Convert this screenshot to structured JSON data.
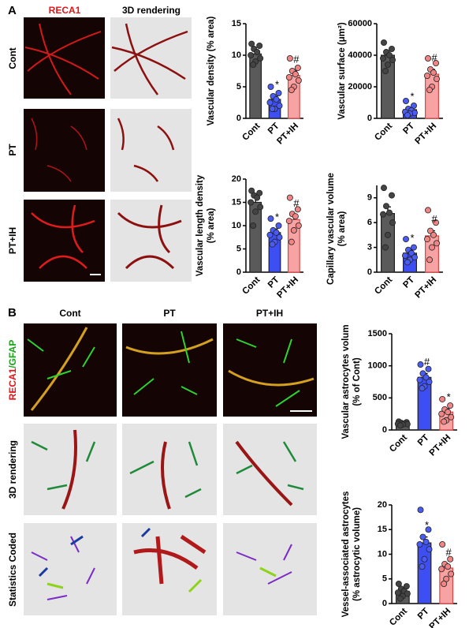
{
  "panel_a": {
    "label": "A",
    "columns": [
      "RECA1",
      "3D rendering"
    ],
    "rows": [
      "Cont",
      "PT",
      "PT+IH"
    ]
  },
  "panel_b": {
    "label": "B",
    "columns": [
      "Cont",
      "PT",
      "PT+IH"
    ],
    "stain": {
      "vessel": "RECA1",
      "glia": "/GFAP"
    },
    "rows": [
      "3D rendering",
      "Statistics Coded"
    ]
  },
  "chart_data": [
    {
      "type": "bar",
      "ylabel": [
        "Vascular density (% area)"
      ],
      "categories": [
        "Cont",
        "PT",
        "PT+IH"
      ],
      "values": [
        10.2,
        3,
        6.8
      ],
      "errors": [
        0.5,
        0.5,
        0.7
      ],
      "annotations": [
        null,
        "*",
        "#"
      ],
      "points": [
        [
          11.8,
          11.5,
          11,
          10.5,
          10,
          9.5,
          9,
          8.5
        ],
        [
          5,
          4,
          3.5,
          3,
          2.5,
          2,
          1.5,
          1.5
        ],
        [
          9.5,
          8,
          7.5,
          7,
          6.5,
          6,
          5,
          4.5
        ]
      ],
      "colors": [
        "#5a5a5a",
        "#3d4ff2",
        "#f7a3a3"
      ],
      "point_colors": [
        "#444444",
        "#4b5cf5",
        "#f08585"
      ],
      "ylim": [
        0,
        15
      ],
      "yticks": [
        0,
        5,
        10,
        15
      ]
    },
    {
      "type": "bar",
      "ylabel": [
        "Vascular surface (μm²)"
      ],
      "categories": [
        "Cont",
        "PT",
        "PT+IH"
      ],
      "values": [
        40000,
        5500,
        28000
      ],
      "errors": [
        2500,
        1000,
        3000
      ],
      "annotations": [
        null,
        "*",
        "#"
      ],
      "points": [
        [
          48000,
          44000,
          42000,
          40000,
          38000,
          37000,
          34000,
          30000
        ],
        [
          11000,
          8000,
          6000,
          5000,
          4000,
          3500,
          3000,
          2000
        ],
        [
          38000,
          35000,
          31000,
          29000,
          27000,
          25000,
          20000,
          18000
        ]
      ],
      "colors": [
        "#5a5a5a",
        "#3d4ff2",
        "#f7a3a3"
      ],
      "point_colors": [
        "#444444",
        "#4b5cf5",
        "#f08585"
      ],
      "ylim": [
        0,
        60000
      ],
      "yticks": [
        0,
        20000,
        40000,
        60000
      ]
    },
    {
      "type": "bar",
      "ylabel": [
        "Vascular length density",
        "(% area)"
      ],
      "categories": [
        "Cont",
        "PT",
        "PT+IH"
      ],
      "values": [
        15,
        8.5,
        11.3
      ],
      "errors": [
        1,
        0.8,
        1
      ],
      "annotations": [
        null,
        "*",
        "#"
      ],
      "points": [
        [
          17.5,
          17,
          16.5,
          16,
          15,
          14,
          13,
          10
        ],
        [
          11.5,
          10,
          9,
          8.5,
          8,
          7.5,
          6.5,
          6
        ],
        [
          16,
          13.5,
          12.5,
          12,
          11,
          10,
          9,
          6.5
        ]
      ],
      "colors": [
        "#5a5a5a",
        "#3d4ff2",
        "#f7a3a3"
      ],
      "point_colors": [
        "#444444",
        "#4b5cf5",
        "#f08585"
      ],
      "ylim": [
        0,
        20
      ],
      "yticks": [
        0,
        5,
        10,
        15,
        20
      ]
    },
    {
      "type": "bar",
      "ylabel": [
        "Capillary vascular volume",
        "(% area)"
      ],
      "categories": [
        "Cont",
        "PT",
        "PT+IH"
      ],
      "values": [
        7.1,
        2.3,
        4.4
      ],
      "errors": [
        0.8,
        0.4,
        0.6
      ],
      "annotations": [
        null,
        "*",
        "#"
      ],
      "points": [
        [
          10.2,
          9.3,
          8,
          7.2,
          7,
          6,
          4.5,
          3
        ],
        [
          4,
          3,
          2.7,
          2.3,
          2,
          1.8,
          1.5,
          1.2
        ],
        [
          7.5,
          6,
          5,
          4.5,
          4,
          3.5,
          3,
          1.5
        ]
      ],
      "colors": [
        "#5a5a5a",
        "#3d4ff2",
        "#f7a3a3"
      ],
      "point_colors": [
        "#444444",
        "#4b5cf5",
        "#f08585"
      ],
      "ylim": [
        0,
        10.5
      ],
      "yticks": [
        0,
        3,
        6,
        9
      ]
    },
    {
      "type": "bar",
      "ylabel": [
        "Vascular astrocytes volum",
        "(% of Cont)"
      ],
      "categories": [
        "Cont",
        "PT",
        "PT+IH"
      ],
      "values": [
        100,
        820,
        280
      ],
      "errors": [
        15,
        60,
        50
      ],
      "annotations": [
        null,
        "#",
        "*"
      ],
      "points": [
        [
          130,
          120,
          110,
          100,
          95,
          90,
          85,
          70
        ],
        [
          1020,
          950,
          880,
          820,
          780,
          750,
          680,
          650
        ],
        [
          480,
          380,
          320,
          280,
          250,
          200,
          150,
          130
        ]
      ],
      "colors": [
        "#5a5a5a",
        "#3d4ff2",
        "#f7a3a3"
      ],
      "point_colors": [
        "#444444",
        "#4b5cf5",
        "#f08585"
      ],
      "ylim": [
        0,
        1500
      ],
      "yticks": [
        0,
        500,
        1000,
        1500
      ]
    },
    {
      "type": "bar",
      "ylabel": [
        "Vessel-associated astrocytes",
        "(% astrocytic volume)"
      ],
      "categories": [
        "Cont",
        "PT",
        "PT+IH"
      ],
      "values": [
        2.5,
        12.3,
        7.2
      ],
      "errors": [
        0.4,
        1.2,
        0.8
      ],
      "annotations": [
        null,
        "*",
        "#"
      ],
      "points": [
        [
          4,
          3.5,
          3,
          2.5,
          2.2,
          2,
          1.5,
          1
        ],
        [
          19,
          15,
          13.5,
          12.5,
          12,
          11,
          9,
          7.5
        ],
        [
          12,
          9,
          8,
          7.5,
          7,
          6,
          5,
          4
        ]
      ],
      "colors": [
        "#5a5a5a",
        "#3d4ff2",
        "#f7a3a3"
      ],
      "point_colors": [
        "#444444",
        "#4b5cf5",
        "#f08585"
      ],
      "ylim": [
        0,
        20
      ],
      "yticks": [
        0,
        5,
        10,
        15,
        20
      ]
    }
  ]
}
